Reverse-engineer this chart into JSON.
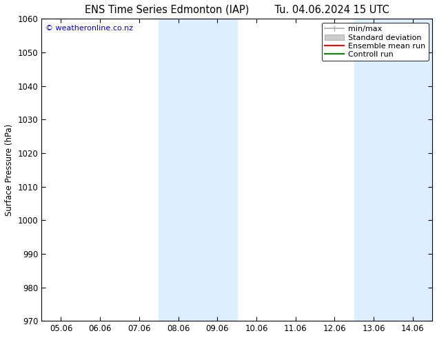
{
  "title_left": "ENS Time Series Edmonton (IAP)",
  "title_right": "Tu. 04.06.2024 15 UTC",
  "ylabel": "Surface Pressure (hPa)",
  "ylim": [
    970,
    1060
  ],
  "yticks": [
    970,
    980,
    990,
    1000,
    1010,
    1020,
    1030,
    1040,
    1050,
    1060
  ],
  "xtick_labels": [
    "05.06",
    "06.06",
    "07.06",
    "08.06",
    "09.06",
    "10.06",
    "11.06",
    "12.06",
    "13.06",
    "14.06"
  ],
  "xlim": [
    0,
    9
  ],
  "shaded_bands": [
    {
      "x_start": 3.0,
      "x_end": 4.0
    },
    {
      "x_start": 8.0,
      "x_end": 9.0
    }
  ],
  "shade_color": "#ddeeff",
  "watermark": "© weatheronline.co.nz",
  "watermark_color": "#0000cc",
  "legend_items": [
    {
      "label": "min/max",
      "color": "#aaaaaa",
      "lw": 1.2,
      "type": "line_bar"
    },
    {
      "label": "Standard deviation",
      "color": "#cccccc",
      "lw": 8,
      "type": "patch"
    },
    {
      "label": "Ensemble mean run",
      "color": "#ff0000",
      "lw": 1.5,
      "type": "line"
    },
    {
      "label": "Controll run",
      "color": "#008800",
      "lw": 1.5,
      "type": "line"
    }
  ],
  "bg_color": "#ffffff",
  "plot_bg_color": "#ffffff",
  "title_fontsize": 10.5,
  "tick_fontsize": 8.5,
  "ylabel_fontsize": 8.5,
  "legend_fontsize": 8
}
